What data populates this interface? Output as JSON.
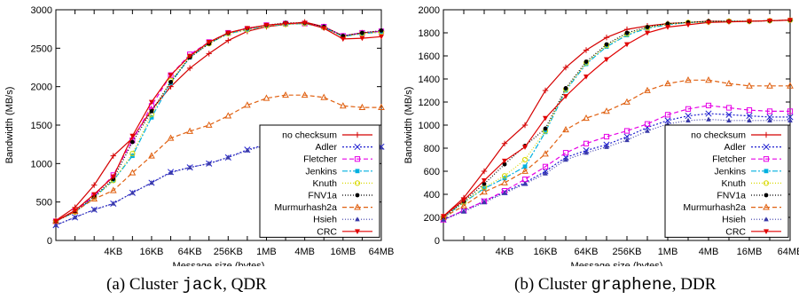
{
  "colors": {
    "no checksum": "#d40000",
    "Adler": "#1f1fd0",
    "Fletcher": "#e600e6",
    "Jenkins": "#00b0e0",
    "Knuth": "#d8d800",
    "FNV1a": "#000000",
    "Murmurhash2a": "#e06010",
    "Hsieh": "#3a3aa8",
    "CRC": "#e00000"
  },
  "captions": {
    "a": {
      "prefix": "(a) Cluster ",
      "name": "jack",
      "suffix": ", QDR"
    },
    "b": {
      "prefix": "(b) Cluster ",
      "name": "graphene",
      "suffix": ", DDR"
    }
  },
  "chart_data": [
    {
      "type": "line",
      "xlabel": "Message size (bytes)",
      "ylabel": "Bandwidth (MB/s)",
      "ylim": [
        0,
        3000
      ],
      "yticks": [
        "0",
        "500",
        "1000",
        "1500",
        "2000",
        "2500",
        "3000"
      ],
      "x_scale": "log2",
      "x_tick_labels": [
        "4KB",
        "16KB",
        "64KB",
        "256KB",
        "1MB",
        "4MB",
        "16MB",
        "64MB"
      ],
      "x_points": [
        "512B",
        "1KB",
        "2KB",
        "4KB",
        "8KB",
        "16KB",
        "32KB",
        "64KB",
        "128KB",
        "256KB",
        "512KB",
        "1MB",
        "2MB",
        "4MB",
        "8MB",
        "16MB",
        "32MB",
        "64MB"
      ],
      "grid": false,
      "legend_position": "bottom-right",
      "series": [
        {
          "name": "no checksum",
          "values": [
            260,
            430,
            720,
            1100,
            1330,
            1700,
            2000,
            2240,
            2430,
            2600,
            2720,
            2780,
            2810,
            2840,
            2780,
            2660,
            2700,
            2720
          ]
        },
        {
          "name": "Adler",
          "values": [
            200,
            300,
            400,
            480,
            620,
            750,
            890,
            950,
            1000,
            1080,
            1180,
            1250,
            1290,
            1290,
            1280,
            1220,
            1220,
            1220
          ]
        },
        {
          "name": "Fletcher",
          "values": [
            250,
            380,
            580,
            850,
            1300,
            1750,
            2150,
            2420,
            2580,
            2700,
            2750,
            2800,
            2820,
            2820,
            2780,
            2660,
            2700,
            2720
          ]
        },
        {
          "name": "Jenkins",
          "values": [
            250,
            370,
            560,
            780,
            1100,
            1600,
            2050,
            2380,
            2560,
            2690,
            2740,
            2790,
            2810,
            2820,
            2770,
            2650,
            2690,
            2710
          ]
        },
        {
          "name": "Knuth",
          "values": [
            250,
            370,
            560,
            780,
            1130,
            1640,
            2080,
            2390,
            2560,
            2690,
            2740,
            2790,
            2810,
            2820,
            2770,
            2650,
            2690,
            2710
          ]
        },
        {
          "name": "FNV1a",
          "values": [
            250,
            370,
            570,
            800,
            1280,
            1680,
            2060,
            2380,
            2560,
            2700,
            2760,
            2800,
            2830,
            2830,
            2780,
            2660,
            2700,
            2730
          ]
        },
        {
          "name": "Murmurhash2a",
          "values": [
            250,
            380,
            540,
            650,
            880,
            1100,
            1330,
            1420,
            1500,
            1620,
            1760,
            1850,
            1890,
            1890,
            1860,
            1750,
            1730,
            1730
          ]
        },
        {
          "name": "Hsieh",
          "values": [
            200,
            300,
            400,
            480,
            620,
            750,
            880,
            950,
            1000,
            1080,
            1170,
            1240,
            1270,
            1270,
            1260,
            1210,
            1210,
            1210
          ]
        },
        {
          "name": "CRC",
          "values": [
            250,
            390,
            600,
            830,
            1360,
            1800,
            2150,
            2400,
            2580,
            2700,
            2760,
            2800,
            2820,
            2830,
            2760,
            2620,
            2630,
            2650
          ]
        }
      ]
    },
    {
      "type": "line",
      "xlabel": "Message size (bytes)",
      "ylabel": "Bandwidth (MB/s)",
      "ylim": [
        0,
        2000
      ],
      "yticks": [
        "0",
        "200",
        "400",
        "600",
        "800",
        "1000",
        "1200",
        "1400",
        "1600",
        "1800",
        "2000"
      ],
      "x_scale": "log2",
      "x_tick_labels": [
        "4KB",
        "16KB",
        "64KB",
        "256KB",
        "1MB",
        "4MB",
        "16MB",
        "64MB"
      ],
      "x_points": [
        "512B",
        "1KB",
        "2KB",
        "4KB",
        "8KB",
        "16KB",
        "32KB",
        "64KB",
        "128KB",
        "256KB",
        "512KB",
        "1MB",
        "2MB",
        "4MB",
        "8MB",
        "16MB",
        "32MB",
        "64MB"
      ],
      "grid": false,
      "legend_position": "bottom-right",
      "series": [
        {
          "name": "no checksum",
          "values": [
            210,
            370,
            600,
            840,
            1000,
            1300,
            1500,
            1650,
            1760,
            1830,
            1860,
            1880,
            1890,
            1900,
            1900,
            1900,
            1905,
            1910
          ]
        },
        {
          "name": "Adler",
          "values": [
            180,
            260,
            340,
            420,
            500,
            600,
            720,
            780,
            830,
            900,
            980,
            1040,
            1080,
            1100,
            1090,
            1080,
            1070,
            1070
          ]
        },
        {
          "name": "Fletcher",
          "values": [
            180,
            260,
            340,
            430,
            530,
            640,
            760,
            840,
            900,
            950,
            1010,
            1090,
            1140,
            1170,
            1150,
            1130,
            1120,
            1120
          ]
        },
        {
          "name": "Jenkins",
          "values": [
            200,
            330,
            450,
            540,
            640,
            940,
            1300,
            1530,
            1680,
            1780,
            1840,
            1870,
            1890,
            1895,
            1900,
            1900,
            1905,
            1910
          ]
        },
        {
          "name": "Knuth",
          "values": [
            200,
            330,
            460,
            560,
            700,
            950,
            1310,
            1540,
            1690,
            1790,
            1845,
            1875,
            1890,
            1895,
            1900,
            1900,
            1905,
            1910
          ]
        },
        {
          "name": "FNV1a",
          "values": [
            200,
            340,
            490,
            660,
            820,
            970,
            1320,
            1550,
            1700,
            1800,
            1850,
            1880,
            1890,
            1900,
            1900,
            1900,
            1905,
            1910
          ]
        },
        {
          "name": "Murmurhash2a",
          "values": [
            200,
            300,
            420,
            500,
            600,
            750,
            960,
            1060,
            1120,
            1200,
            1300,
            1360,
            1390,
            1390,
            1360,
            1340,
            1340,
            1340
          ]
        },
        {
          "name": "Hsieh",
          "values": [
            180,
            250,
            330,
            410,
            490,
            580,
            700,
            760,
            810,
            870,
            950,
            1010,
            1040,
            1050,
            1040,
            1040,
            1040,
            1040
          ]
        },
        {
          "name": "CRC",
          "values": [
            210,
            350,
            520,
            690,
            810,
            1060,
            1250,
            1420,
            1570,
            1700,
            1800,
            1850,
            1870,
            1890,
            1895,
            1900,
            1905,
            1910
          ]
        }
      ]
    }
  ]
}
